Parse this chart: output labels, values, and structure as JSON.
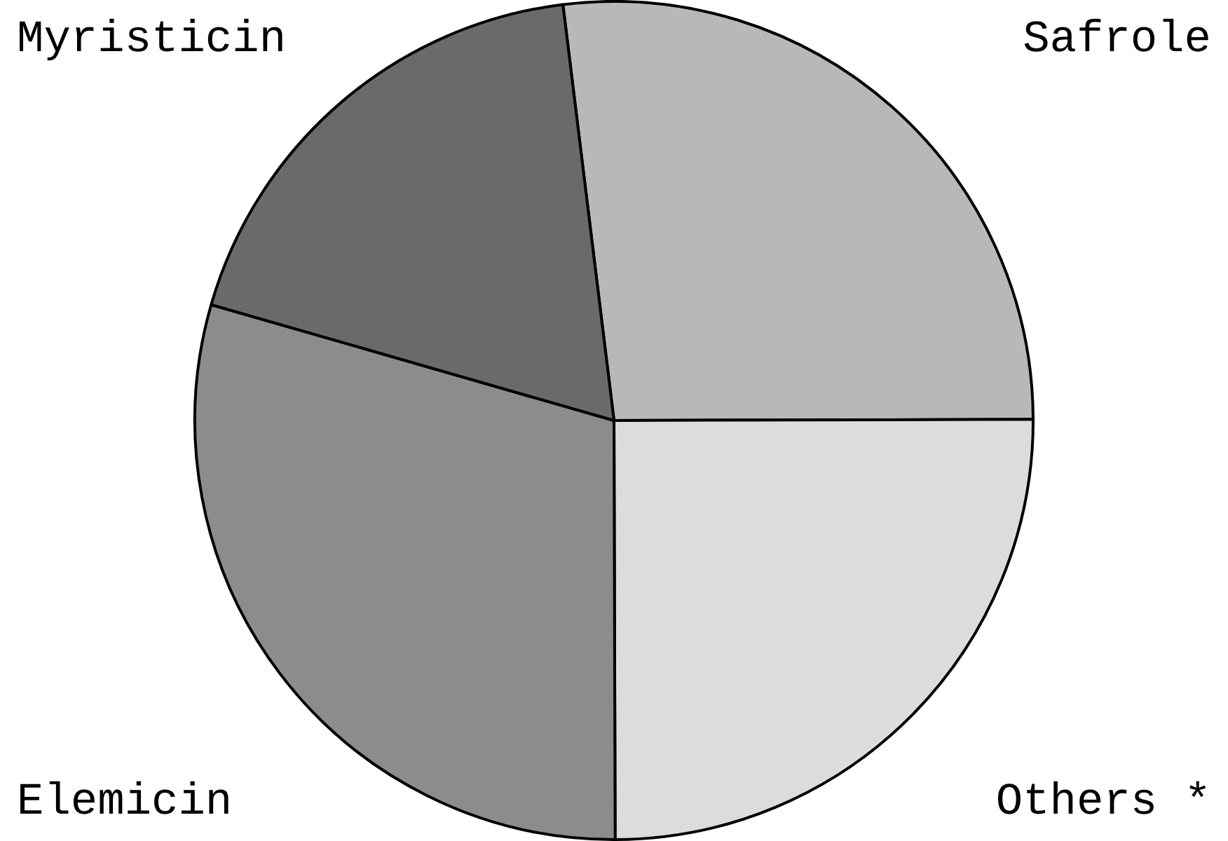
{
  "chart_data": {
    "type": "pie",
    "categories": [
      "Safrole",
      "Others *",
      "Elemicin",
      "Myristicin"
    ],
    "values": [
      26.9,
      25,
      29.5,
      18.6
    ],
    "colors": [
      "#b8b8b8",
      "#dcdcdc",
      "#8c8c8c",
      "#6a6a6a"
    ]
  }
}
